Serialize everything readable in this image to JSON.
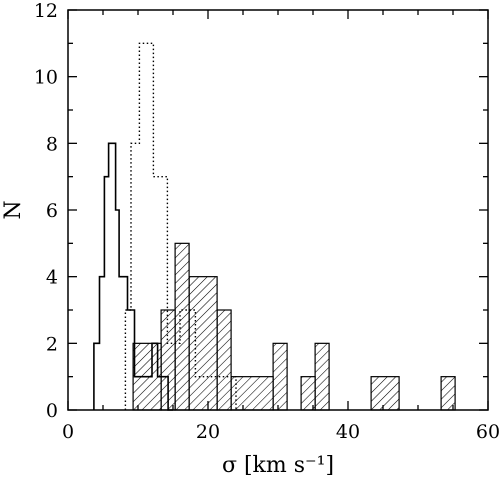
{
  "chart_data": {
    "type": "histogram",
    "xlabel": "σ  [km s⁻¹]",
    "ylabel": "N",
    "xlim": [
      0,
      60
    ],
    "ylim": [
      0,
      12
    ],
    "x_ticks": [
      0,
      20,
      40,
      60
    ],
    "y_ticks": [
      0,
      2,
      4,
      6,
      8,
      10,
      12
    ],
    "grid": false,
    "legend": "none",
    "series": [
      {
        "style": "solid-step",
        "bins": [
          {
            "x0": 3.7,
            "x1": 4.5,
            "count": 2
          },
          {
            "x0": 4.5,
            "x1": 5.2,
            "count": 4
          },
          {
            "x0": 5.2,
            "x1": 5.8,
            "count": 7
          },
          {
            "x0": 5.8,
            "x1": 6.8,
            "count": 8
          },
          {
            "x0": 6.8,
            "x1": 7.3,
            "count": 6
          },
          {
            "x0": 7.3,
            "x1": 8.5,
            "count": 4
          },
          {
            "x0": 8.5,
            "x1": 9.5,
            "count": 3
          },
          {
            "x0": 9.5,
            "x1": 12.0,
            "count": 1
          },
          {
            "x0": 12.0,
            "x1": 12.8,
            "count": 2
          },
          {
            "x0": 12.8,
            "x1": 14.3,
            "count": 1
          },
          {
            "x0": 14.3,
            "x1": 15.0,
            "count": 0
          }
        ]
      },
      {
        "style": "dotted-step",
        "bins": [
          {
            "x0": 8.2,
            "x1": 9.0,
            "count": 3
          },
          {
            "x0": 9.0,
            "x1": 10.2,
            "count": 8
          },
          {
            "x0": 10.2,
            "x1": 12.2,
            "count": 11
          },
          {
            "x0": 12.2,
            "x1": 14.2,
            "count": 7
          },
          {
            "x0": 14.2,
            "x1": 16.0,
            "count": 2
          },
          {
            "x0": 16.0,
            "x1": 18.2,
            "count": 3
          },
          {
            "x0": 18.2,
            "x1": 22.0,
            "count": 1
          },
          {
            "x0": 22.0,
            "x1": 24.0,
            "count": 1
          }
        ]
      },
      {
        "style": "hatched",
        "bins": [
          {
            "x0": 9.3,
            "x1": 13.3,
            "count": 2
          },
          {
            "x0": 13.3,
            "x1": 15.3,
            "count": 3
          },
          {
            "x0": 15.3,
            "x1": 17.3,
            "count": 5
          },
          {
            "x0": 17.3,
            "x1": 21.3,
            "count": 4
          },
          {
            "x0": 21.3,
            "x1": 23.3,
            "count": 3
          },
          {
            "x0": 23.3,
            "x1": 29.3,
            "count": 1
          },
          {
            "x0": 29.3,
            "x1": 31.3,
            "count": 2
          },
          {
            "x0": 33.3,
            "x1": 35.3,
            "count": 1
          },
          {
            "x0": 35.3,
            "x1": 37.3,
            "count": 2
          },
          {
            "x0": 43.3,
            "x1": 47.3,
            "count": 1
          },
          {
            "x0": 53.3,
            "x1": 55.3,
            "count": 1
          }
        ]
      }
    ]
  }
}
